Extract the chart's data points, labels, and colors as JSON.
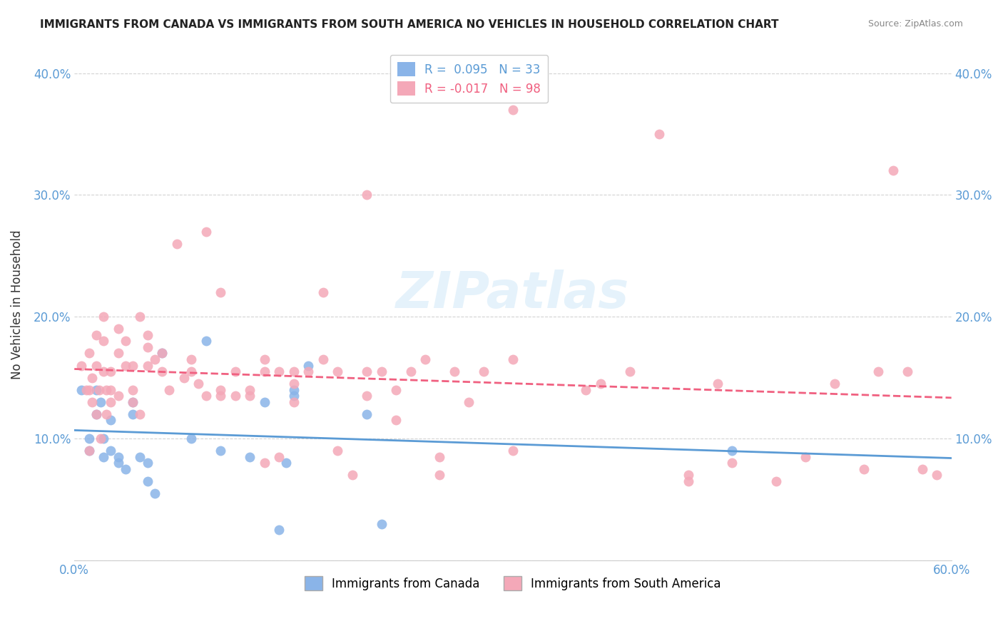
{
  "title": "IMMIGRANTS FROM CANADA VS IMMIGRANTS FROM SOUTH AMERICA NO VEHICLES IN HOUSEHOLD CORRELATION CHART",
  "source": "Source: ZipAtlas.com",
  "xlabel": "",
  "ylabel": "No Vehicles in Household",
  "xlim": [
    0.0,
    0.6
  ],
  "ylim": [
    0.0,
    0.42
  ],
  "xticks": [
    0.0,
    0.1,
    0.2,
    0.3,
    0.4,
    0.5,
    0.6
  ],
  "yticks": [
    0.0,
    0.1,
    0.2,
    0.3,
    0.4
  ],
  "ytick_labels": [
    "",
    "10.0%",
    "20.0%",
    "30.0%",
    "40.0%"
  ],
  "xtick_labels": [
    "0.0%",
    "",
    "",
    "",
    "",
    "",
    "60.0%"
  ],
  "canada_color": "#8ab4e8",
  "south_america_color": "#f4a8b8",
  "canada_line_color": "#5b9bd5",
  "south_america_line_color": "#f06080",
  "canada_R": 0.095,
  "canada_N": 33,
  "south_america_R": -0.017,
  "south_america_N": 98,
  "watermark": "ZIPatlas",
  "legend_label_canada": "Immigrants from Canada",
  "legend_label_south_america": "Immigrants from South America",
  "canada_x": [
    0.005,
    0.01,
    0.01,
    0.015,
    0.015,
    0.018,
    0.02,
    0.02,
    0.025,
    0.025,
    0.03,
    0.03,
    0.035,
    0.04,
    0.04,
    0.045,
    0.05,
    0.05,
    0.055,
    0.06,
    0.08,
    0.09,
    0.1,
    0.12,
    0.13,
    0.14,
    0.145,
    0.15,
    0.15,
    0.16,
    0.2,
    0.21,
    0.45
  ],
  "canada_y": [
    0.14,
    0.1,
    0.09,
    0.14,
    0.12,
    0.13,
    0.1,
    0.085,
    0.115,
    0.09,
    0.085,
    0.08,
    0.075,
    0.12,
    0.13,
    0.085,
    0.08,
    0.065,
    0.055,
    0.17,
    0.1,
    0.18,
    0.09,
    0.085,
    0.13,
    0.025,
    0.08,
    0.135,
    0.14,
    0.16,
    0.12,
    0.03,
    0.09
  ],
  "south_america_x": [
    0.005,
    0.008,
    0.01,
    0.01,
    0.01,
    0.012,
    0.012,
    0.015,
    0.015,
    0.015,
    0.017,
    0.018,
    0.02,
    0.02,
    0.02,
    0.022,
    0.022,
    0.025,
    0.025,
    0.025,
    0.03,
    0.03,
    0.03,
    0.035,
    0.035,
    0.04,
    0.04,
    0.04,
    0.045,
    0.045,
    0.05,
    0.05,
    0.05,
    0.055,
    0.06,
    0.06,
    0.065,
    0.07,
    0.075,
    0.08,
    0.08,
    0.085,
    0.09,
    0.09,
    0.1,
    0.1,
    0.1,
    0.11,
    0.11,
    0.12,
    0.12,
    0.13,
    0.13,
    0.13,
    0.14,
    0.14,
    0.15,
    0.15,
    0.15,
    0.16,
    0.17,
    0.17,
    0.18,
    0.18,
    0.19,
    0.2,
    0.2,
    0.2,
    0.21,
    0.22,
    0.22,
    0.23,
    0.24,
    0.25,
    0.25,
    0.26,
    0.27,
    0.28,
    0.3,
    0.3,
    0.3,
    0.35,
    0.36,
    0.38,
    0.4,
    0.42,
    0.42,
    0.44,
    0.45,
    0.48,
    0.5,
    0.52,
    0.54,
    0.55,
    0.56,
    0.57,
    0.58,
    0.59
  ],
  "south_america_y": [
    0.16,
    0.14,
    0.09,
    0.14,
    0.17,
    0.13,
    0.15,
    0.12,
    0.16,
    0.185,
    0.14,
    0.1,
    0.155,
    0.18,
    0.2,
    0.14,
    0.12,
    0.14,
    0.13,
    0.155,
    0.17,
    0.135,
    0.19,
    0.16,
    0.18,
    0.16,
    0.14,
    0.13,
    0.12,
    0.2,
    0.16,
    0.175,
    0.185,
    0.165,
    0.155,
    0.17,
    0.14,
    0.26,
    0.15,
    0.165,
    0.155,
    0.145,
    0.135,
    0.27,
    0.135,
    0.14,
    0.22,
    0.135,
    0.155,
    0.135,
    0.14,
    0.08,
    0.155,
    0.165,
    0.155,
    0.085,
    0.13,
    0.145,
    0.155,
    0.155,
    0.22,
    0.165,
    0.09,
    0.155,
    0.07,
    0.135,
    0.3,
    0.155,
    0.155,
    0.14,
    0.115,
    0.155,
    0.165,
    0.07,
    0.085,
    0.155,
    0.13,
    0.155,
    0.37,
    0.165,
    0.09,
    0.14,
    0.145,
    0.155,
    0.35,
    0.065,
    0.07,
    0.145,
    0.08,
    0.065,
    0.085,
    0.145,
    0.075,
    0.155,
    0.32,
    0.155,
    0.075,
    0.07
  ]
}
